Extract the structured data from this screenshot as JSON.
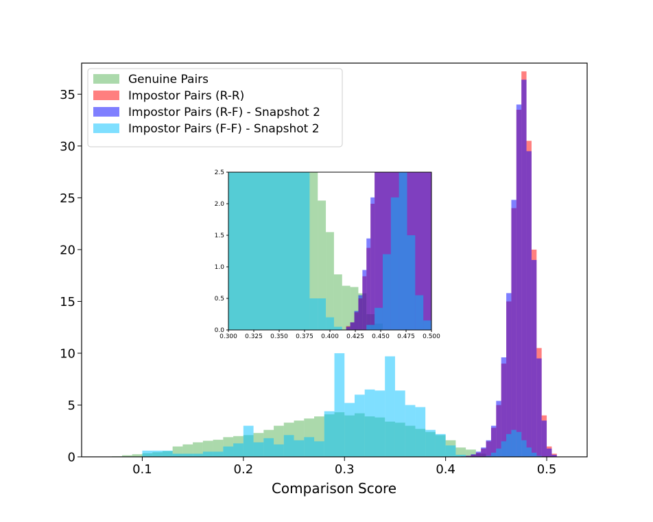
{
  "chart_data": [
    {
      "type": "histogram",
      "xlabel": "Comparison Score",
      "ylabel": "",
      "xlim": [
        0.04,
        0.54
      ],
      "ylim": [
        0,
        38
      ],
      "xticks": [
        "0.1",
        "0.2",
        "0.3",
        "0.4",
        "0.5"
      ],
      "yticks": [
        "0",
        "5",
        "10",
        "15",
        "20",
        "25",
        "30",
        "35"
      ],
      "legend_position": "upper-left",
      "grid": false,
      "series": [
        {
          "name": "Genuine Pairs",
          "color": "#2ca02c",
          "opacity": 0.4,
          "bins": [
            [
              0.062,
              0.07,
              0.02
            ],
            [
              0.07,
              0.08,
              0.05
            ],
            [
              0.08,
              0.09,
              0.15
            ],
            [
              0.09,
              0.1,
              0.25
            ],
            [
              0.1,
              0.11,
              0.35
            ],
            [
              0.11,
              0.12,
              0.45
            ],
            [
              0.12,
              0.13,
              0.55
            ],
            [
              0.13,
              0.14,
              1.0
            ],
            [
              0.14,
              0.15,
              1.2
            ],
            [
              0.15,
              0.16,
              1.4
            ],
            [
              0.16,
              0.17,
              1.55
            ],
            [
              0.17,
              0.18,
              1.65
            ],
            [
              0.18,
              0.19,
              1.9
            ],
            [
              0.19,
              0.2,
              2.0
            ],
            [
              0.2,
              0.21,
              2.1
            ],
            [
              0.21,
              0.22,
              2.3
            ],
            [
              0.22,
              0.23,
              2.6
            ],
            [
              0.23,
              0.24,
              3.0
            ],
            [
              0.24,
              0.25,
              3.3
            ],
            [
              0.25,
              0.26,
              3.5
            ],
            [
              0.26,
              0.27,
              3.7
            ],
            [
              0.27,
              0.28,
              3.9
            ],
            [
              0.28,
              0.29,
              4.1
            ],
            [
              0.29,
              0.3,
              4.3
            ],
            [
              0.3,
              0.31,
              4.0
            ],
            [
              0.31,
              0.32,
              4.2
            ],
            [
              0.32,
              0.33,
              3.9
            ],
            [
              0.33,
              0.34,
              3.8
            ],
            [
              0.34,
              0.35,
              3.4
            ],
            [
              0.35,
              0.36,
              3.3
            ],
            [
              0.36,
              0.37,
              3.0
            ],
            [
              0.37,
              0.38,
              2.7
            ],
            [
              0.38,
              0.39,
              2.4
            ],
            [
              0.39,
              0.4,
              2.1
            ],
            [
              0.4,
              0.41,
              1.6
            ],
            [
              0.41,
              0.42,
              0.9
            ],
            [
              0.42,
              0.43,
              0.7
            ],
            [
              0.43,
              0.44,
              0.3
            ],
            [
              0.44,
              0.45,
              0.1
            ]
          ]
        },
        {
          "name": "Impostor Pairs (R-R)",
          "color": "#ff0000",
          "opacity": 0.5,
          "bins": [
            [
              0.415,
              0.42,
              0.05
            ],
            [
              0.42,
              0.425,
              0.1
            ],
            [
              0.425,
              0.43,
              0.2
            ],
            [
              0.43,
              0.435,
              0.4
            ],
            [
              0.435,
              0.44,
              0.8
            ],
            [
              0.44,
              0.445,
              1.5
            ],
            [
              0.445,
              0.45,
              2.8
            ],
            [
              0.45,
              0.455,
              5.0
            ],
            [
              0.455,
              0.46,
              9.0
            ],
            [
              0.46,
              0.465,
              15.0
            ],
            [
              0.465,
              0.47,
              24.0
            ],
            [
              0.47,
              0.475,
              33.5
            ],
            [
              0.475,
              0.48,
              37.2
            ],
            [
              0.48,
              0.485,
              30.5
            ],
            [
              0.485,
              0.49,
              20.0
            ],
            [
              0.49,
              0.495,
              10.5
            ],
            [
              0.495,
              0.5,
              4.0
            ],
            [
              0.5,
              0.505,
              1.0
            ],
            [
              0.505,
              0.51,
              0.3
            ]
          ]
        },
        {
          "name": "Impostor Pairs (R-F) - Snapshot 2",
          "color": "#0000ff",
          "opacity": 0.5,
          "bins": [
            [
              0.415,
              0.42,
              0.05
            ],
            [
              0.42,
              0.425,
              0.1
            ],
            [
              0.425,
              0.43,
              0.25
            ],
            [
              0.43,
              0.435,
              0.5
            ],
            [
              0.435,
              0.44,
              0.9
            ],
            [
              0.44,
              0.445,
              1.6
            ],
            [
              0.445,
              0.45,
              3.0
            ],
            [
              0.45,
              0.455,
              5.4
            ],
            [
              0.455,
              0.46,
              9.6
            ],
            [
              0.46,
              0.465,
              15.8
            ],
            [
              0.465,
              0.47,
              24.8
            ],
            [
              0.47,
              0.475,
              34.0
            ],
            [
              0.475,
              0.48,
              36.4
            ],
            [
              0.48,
              0.485,
              29.5
            ],
            [
              0.485,
              0.49,
              19.0
            ],
            [
              0.49,
              0.495,
              9.5
            ],
            [
              0.495,
              0.5,
              3.5
            ],
            [
              0.5,
              0.505,
              0.8
            ],
            [
              0.505,
              0.51,
              0.2
            ]
          ]
        },
        {
          "name": "Impostor Pairs (F-F) - Snapshot 2",
          "color": "#00bfff",
          "opacity": 0.5,
          "bins": [
            [
              0.1,
              0.11,
              0.6
            ],
            [
              0.11,
              0.12,
              0.6
            ],
            [
              0.12,
              0.13,
              0.6
            ],
            [
              0.13,
              0.14,
              0.3
            ],
            [
              0.14,
              0.15,
              0.3
            ],
            [
              0.15,
              0.16,
              0.3
            ],
            [
              0.16,
              0.17,
              0.5
            ],
            [
              0.17,
              0.18,
              0.5
            ],
            [
              0.18,
              0.19,
              1.0
            ],
            [
              0.19,
              0.2,
              1.3
            ],
            [
              0.2,
              0.21,
              3.0
            ],
            [
              0.21,
              0.22,
              1.4
            ],
            [
              0.22,
              0.23,
              1.8
            ],
            [
              0.23,
              0.24,
              1.2
            ],
            [
              0.24,
              0.25,
              2.1
            ],
            [
              0.25,
              0.26,
              1.6
            ],
            [
              0.26,
              0.27,
              1.9
            ],
            [
              0.27,
              0.28,
              1.5
            ],
            [
              0.28,
              0.29,
              4.4
            ],
            [
              0.29,
              0.3,
              10.0
            ],
            [
              0.3,
              0.31,
              5.2
            ],
            [
              0.31,
              0.32,
              6.0
            ],
            [
              0.32,
              0.33,
              6.5
            ],
            [
              0.33,
              0.34,
              6.4
            ],
            [
              0.34,
              0.35,
              9.7
            ],
            [
              0.35,
              0.36,
              6.4
            ],
            [
              0.36,
              0.37,
              5.0
            ],
            [
              0.37,
              0.38,
              4.8
            ],
            [
              0.38,
              0.39,
              2.6
            ],
            [
              0.39,
              0.4,
              2.2
            ],
            [
              0.4,
              0.41,
              1.1
            ],
            [
              0.41,
              0.42,
              0.2
            ],
            [
              0.44,
              0.445,
              0.1
            ],
            [
              0.445,
              0.45,
              0.4
            ],
            [
              0.45,
              0.455,
              0.8
            ],
            [
              0.455,
              0.46,
              1.5
            ],
            [
              0.46,
              0.465,
              2.2
            ],
            [
              0.465,
              0.47,
              2.6
            ],
            [
              0.47,
              0.475,
              2.4
            ],
            [
              0.475,
              0.48,
              1.6
            ],
            [
              0.48,
              0.485,
              0.9
            ],
            [
              0.485,
              0.49,
              0.4
            ],
            [
              0.49,
              0.495,
              0.1
            ]
          ]
        }
      ]
    },
    {
      "type": "histogram",
      "role": "inset-zoom",
      "xlim": [
        0.3,
        0.5
      ],
      "ylim": [
        0,
        2.5
      ],
      "xticks": [
        "0.300",
        "0.325",
        "0.350",
        "0.375",
        "0.400",
        "0.425",
        "0.450",
        "0.475",
        "0.500"
      ],
      "yticks": [
        "0.0",
        "0.5",
        "1.0",
        "1.5",
        "2.0",
        "2.5"
      ],
      "series": [
        {
          "name": "Genuine Pairs",
          "color": "#2ca02c",
          "opacity": 0.4,
          "bins": [
            [
              0.3,
              0.388,
              2.5
            ],
            [
              0.388,
              0.396,
              2.05
            ],
            [
              0.396,
              0.404,
              1.55
            ],
            [
              0.404,
              0.412,
              0.88
            ],
            [
              0.412,
              0.42,
              0.7
            ],
            [
              0.42,
              0.428,
              0.68
            ],
            [
              0.428,
              0.436,
              0.58
            ],
            [
              0.436,
              0.444,
              0.25
            ],
            [
              0.444,
              0.452,
              0.1
            ]
          ]
        },
        {
          "name": "Impostor Pairs (R-R)",
          "color": "#ff0000",
          "opacity": 0.5,
          "bins": [
            [
              0.416,
              0.42,
              0.06
            ],
            [
              0.42,
              0.424,
              0.12
            ],
            [
              0.424,
              0.428,
              0.28
            ],
            [
              0.428,
              0.432,
              0.5
            ],
            [
              0.432,
              0.436,
              0.85
            ],
            [
              0.436,
              0.44,
              1.3
            ],
            [
              0.44,
              0.444,
              2.0
            ],
            [
              0.444,
              0.5,
              2.5
            ]
          ]
        },
        {
          "name": "Impostor Pairs (R-F) - Snapshot 2",
          "color": "#0000ff",
          "opacity": 0.5,
          "bins": [
            [
              0.416,
              0.42,
              0.05
            ],
            [
              0.42,
              0.424,
              0.12
            ],
            [
              0.424,
              0.428,
              0.3
            ],
            [
              0.428,
              0.432,
              0.55
            ],
            [
              0.432,
              0.436,
              0.95
            ],
            [
              0.436,
              0.44,
              1.45
            ],
            [
              0.44,
              0.444,
              2.1
            ],
            [
              0.444,
              0.5,
              2.5
            ]
          ]
        },
        {
          "name": "Impostor Pairs (F-F) - Snapshot 2",
          "color": "#00bfff",
          "opacity": 0.5,
          "bins": [
            [
              0.3,
              0.38,
              2.5
            ],
            [
              0.38,
              0.388,
              0.5
            ],
            [
              0.388,
              0.396,
              0.5
            ],
            [
              0.396,
              0.404,
              0.2
            ],
            [
              0.404,
              0.412,
              0.05
            ],
            [
              0.436,
              0.444,
              0.08
            ],
            [
              0.444,
              0.452,
              0.35
            ],
            [
              0.452,
              0.46,
              1.2
            ],
            [
              0.46,
              0.468,
              2.1
            ],
            [
              0.468,
              0.476,
              2.5
            ],
            [
              0.476,
              0.484,
              1.5
            ],
            [
              0.484,
              0.492,
              0.55
            ],
            [
              0.492,
              0.5,
              0.15
            ]
          ]
        }
      ]
    }
  ]
}
